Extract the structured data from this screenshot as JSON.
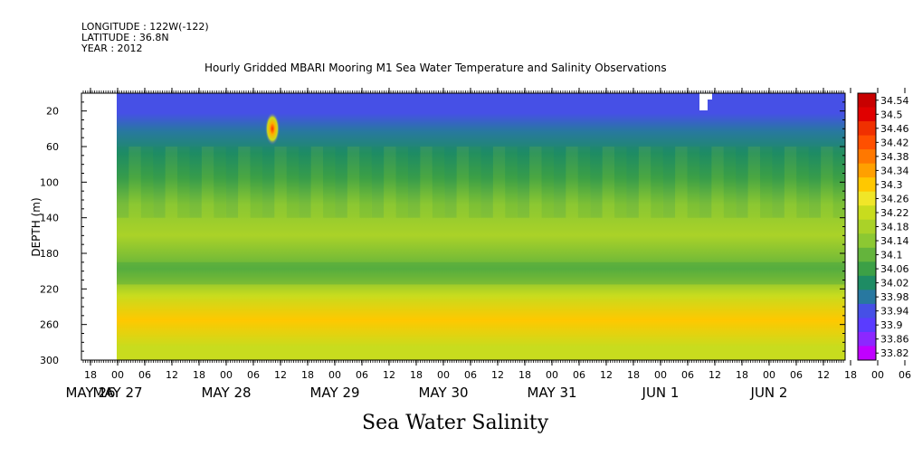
{
  "meta": {
    "longitude": "LONGITUDE : 122W(-122)",
    "latitude": "LATITUDE : 36.8N",
    "year": "YEAR : 2012"
  },
  "chart_data": {
    "type": "heatmap",
    "title": "Hourly Gridded MBARI Mooring M1 Sea Water Temperature and Salinity Observations",
    "caption": "Sea Water Salinity",
    "ylabel": "DEPTH (m)",
    "xlabel": "",
    "y_reversed": true,
    "ylim": [
      300,
      0
    ],
    "yticks": [
      20,
      60,
      100,
      140,
      180,
      220,
      260,
      300
    ],
    "x_hour_ticks": [
      "18",
      "00",
      "06",
      "12",
      "18",
      "00",
      "06",
      "12",
      "18",
      "00",
      "06",
      "12",
      "18",
      "00",
      "06",
      "12",
      "18",
      "00",
      "06",
      "12",
      "18",
      "00",
      "06",
      "12",
      "18",
      "00",
      "06",
      "12",
      "18",
      "00",
      "06",
      "12"
    ],
    "x_date_labels": [
      {
        "label": "MAY 26",
        "hour_index": 0
      },
      {
        "label": "MAY 27",
        "hour_index": 1
      },
      {
        "label": "MAY 28",
        "hour_index": 5
      },
      {
        "label": "MAY 29",
        "hour_index": 9
      },
      {
        "label": "MAY 30",
        "hour_index": 13
      },
      {
        "label": "MAY 31",
        "hour_index": 17
      },
      {
        "label": "JUN  1",
        "hour_index": 21
      },
      {
        "label": "JUN  2",
        "hour_index": 25
      }
    ],
    "colorbar_labels": [
      "34.54",
      "34.5",
      "34.46",
      "34.42",
      "34.38",
      "34.34",
      "34.3",
      "34.26",
      "34.22",
      "34.18",
      "34.14",
      "34.1",
      "34.06",
      "34.02",
      "33.98",
      "33.94",
      "33.9",
      "33.86",
      "33.82"
    ],
    "colorbar_colors": [
      "#c80000",
      "#e00000",
      "#f03000",
      "#ff5000",
      "#ff7800",
      "#ffa000",
      "#ffc800",
      "#f0e628",
      "#c8dc1e",
      "#aad228",
      "#8cc832",
      "#64b43c",
      "#3ca046",
      "#1e8c64",
      "#2878a0",
      "#4650e6",
      "#5a3cff",
      "#8c28ff",
      "#c000ff"
    ],
    "depth_bands": [
      {
        "from": 0,
        "to": 15,
        "value": 33.93
      },
      {
        "from": 15,
        "to": 30,
        "value": 33.95
      },
      {
        "from": 30,
        "to": 55,
        "value": 33.97
      },
      {
        "from": 55,
        "to": 80,
        "value": 34.02
      },
      {
        "from": 80,
        "to": 110,
        "value": 34.06
      },
      {
        "from": 110,
        "to": 140,
        "value": 34.14
      },
      {
        "from": 140,
        "to": 180,
        "value": 34.18
      },
      {
        "from": 180,
        "to": 215,
        "value": 34.12
      },
      {
        "from": 215,
        "to": 240,
        "value": 34.22
      },
      {
        "from": 240,
        "to": 270,
        "value": 34.29
      },
      {
        "from": 270,
        "to": 300,
        "value": 34.22
      }
    ]
  }
}
